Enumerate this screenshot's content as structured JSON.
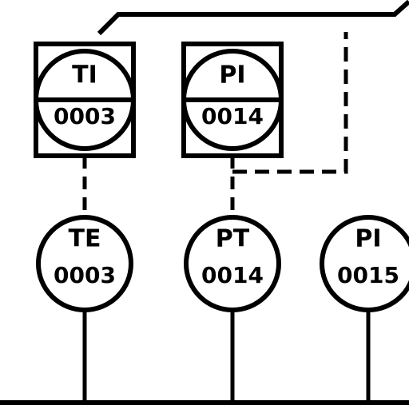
{
  "colors": {
    "line": "#000000",
    "background": "#ffffff"
  },
  "instruments": [
    {
      "id": "ti-0003",
      "function": "TI",
      "number": "0003",
      "type": "shared-display"
    },
    {
      "id": "pi-0014-panel",
      "function": "PI",
      "number": "0014",
      "type": "shared-display"
    },
    {
      "id": "te-0003",
      "function": "TE",
      "number": "0003",
      "type": "field"
    },
    {
      "id": "pt-0014",
      "function": "PT",
      "number": "0014",
      "type": "field"
    },
    {
      "id": "pi-0015",
      "function": "PI",
      "number": "0015",
      "type": "field"
    }
  ],
  "connections": [
    {
      "from": "ti-0003",
      "to": "te-0003",
      "signal": "electrical",
      "style": "dashed"
    },
    {
      "from": "pi-0014-panel",
      "to": "pt-0014",
      "signal": "electrical",
      "style": "dashed"
    },
    {
      "from": "pt-0014",
      "to": "off-page",
      "signal": "electrical",
      "style": "dashed"
    },
    {
      "from": "ti-0003",
      "to": "off-page",
      "signal": "process",
      "style": "solid"
    }
  ]
}
